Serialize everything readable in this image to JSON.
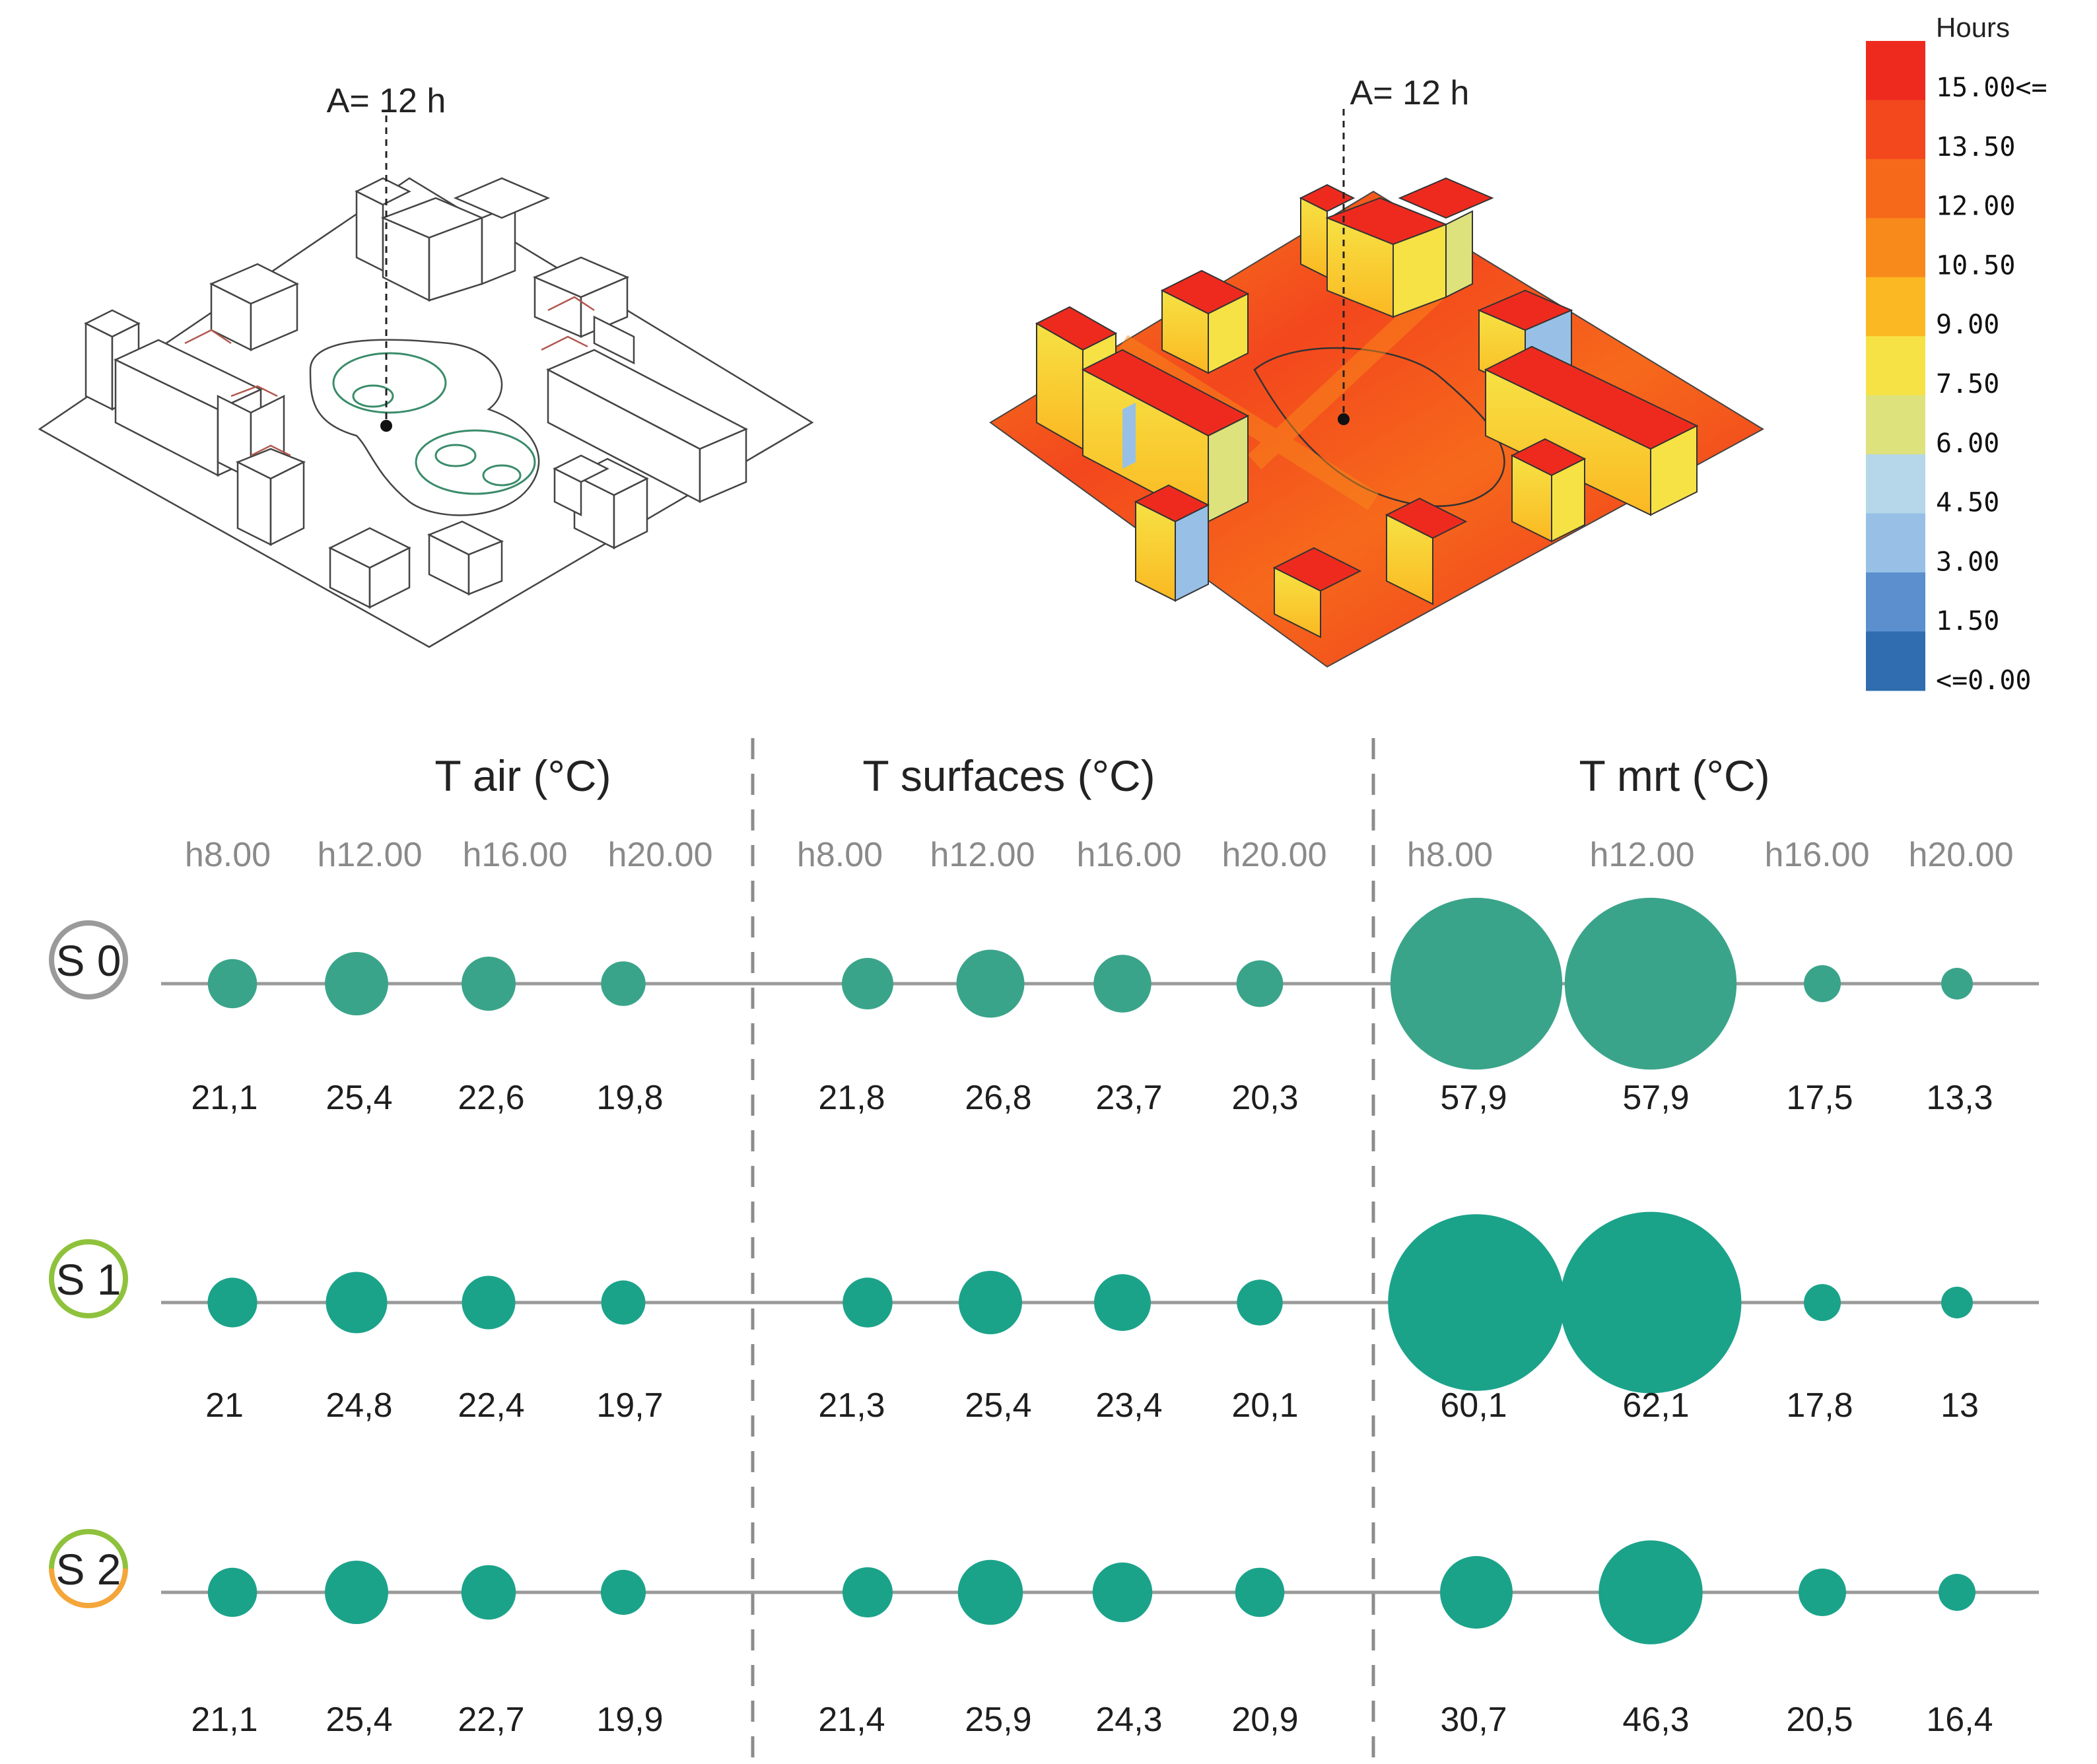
{
  "diagrams": {
    "left_annotation": "A= 12 h",
    "right_annotation": "A= 12 h"
  },
  "colorbar": {
    "title": "Hours",
    "labels": [
      "15.00<=",
      "13.50",
      "12.00",
      "10.50",
      "9.00",
      "7.50",
      "6.00",
      "4.50",
      "3.00",
      "1.50",
      "<=0.00"
    ],
    "colors": [
      "#ee2a1f",
      "#f3471d",
      "#f6691b",
      "#f8891b",
      "#fbb822",
      "#f6e244",
      "#dde27c",
      "#b6d6ea",
      "#98c0e6",
      "#5b8fce",
      "#2f6cb0"
    ]
  },
  "chart_data": {
    "type": "bubble-matrix",
    "groups": [
      "T air (°C)",
      "T surfaces (°C)",
      "T mrt (°C)"
    ],
    "hours": [
      "h8.00",
      "h12.00",
      "h16.00",
      "h20.00"
    ],
    "scenarios": [
      {
        "name": "S 0",
        "values": [
          [
            21.1,
            25.4,
            22.6,
            19.8
          ],
          [
            21.8,
            26.8,
            23.7,
            20.3
          ],
          [
            57.9,
            57.9,
            17.5,
            13.3
          ]
        ],
        "labels": [
          [
            "21,1",
            "25,4",
            "22,6",
            "19,8"
          ],
          [
            "21,8",
            "26,8",
            "23,7",
            "20,3"
          ],
          [
            "57,9",
            "57,9",
            "17,5",
            "13,3"
          ]
        ],
        "bubble_color": "#3aa48a",
        "ring_colors": [
          "#9a9a9a",
          "#9a9a9a"
        ]
      },
      {
        "name": "S 1",
        "values": [
          [
            21,
            24.8,
            22.4,
            19.7
          ],
          [
            21.3,
            25.4,
            23.4,
            20.1
          ],
          [
            60.1,
            62.1,
            17.8,
            13
          ]
        ],
        "labels": [
          [
            "21",
            "24,8",
            "22,4",
            "19,7"
          ],
          [
            "21,3",
            "25,4",
            "23,4",
            "20,1"
          ],
          [
            "60,1",
            "62,1",
            "17,8",
            "13"
          ]
        ],
        "bubble_color": "#1ba38a",
        "ring_colors": [
          "#8fc23c",
          "#8fc23c"
        ]
      },
      {
        "name": "S 2",
        "values": [
          [
            21.1,
            25.4,
            22.7,
            19.9
          ],
          [
            21.4,
            25.9,
            24.3,
            20.9
          ],
          [
            30.7,
            46.3,
            20.5,
            16.4
          ]
        ],
        "labels": [
          [
            "21,1",
            "25,4",
            "22,7",
            "19,9"
          ],
          [
            "21,4",
            "25,9",
            "24,3",
            "20,9"
          ],
          [
            "30,7",
            "46,3",
            "20,5",
            "16,4"
          ]
        ],
        "bubble_color": "#1ba38a",
        "ring_colors": [
          "#8fc23c",
          "#f4a63a"
        ]
      }
    ]
  }
}
